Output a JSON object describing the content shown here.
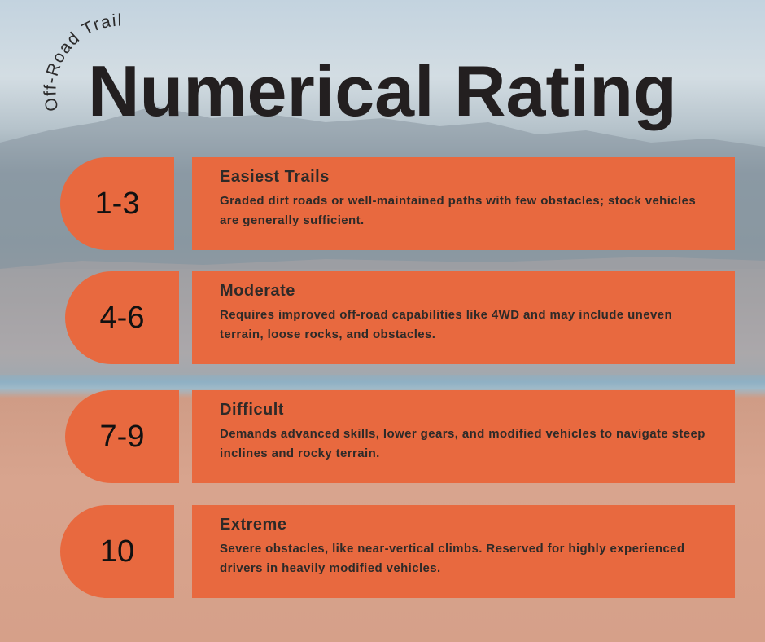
{
  "header": {
    "subtitle": "Off-Road Trail",
    "title": "Numerical Rating"
  },
  "colors": {
    "accent": "#e8693f",
    "text": "#2e2a28"
  },
  "ratings": [
    {
      "range": "1-3",
      "title": "Easiest Trails",
      "description": "Graded dirt roads or well-maintained paths with few obstacles; stock vehicles are generally sufficient."
    },
    {
      "range": "4-6",
      "title": "Moderate",
      "description": "Requires improved off-road capabilities like 4WD and may include uneven terrain, loose rocks, and obstacles."
    },
    {
      "range": "7-9",
      "title": "Difficult",
      "description": "Demands advanced skills, lower gears, and modified vehicles to navigate steep inclines and rocky terrain."
    },
    {
      "range": "10",
      "title": "Extreme",
      "description": "Severe obstacles, like near-vertical climbs. Reserved for highly experienced drivers in heavily modified vehicles."
    }
  ]
}
